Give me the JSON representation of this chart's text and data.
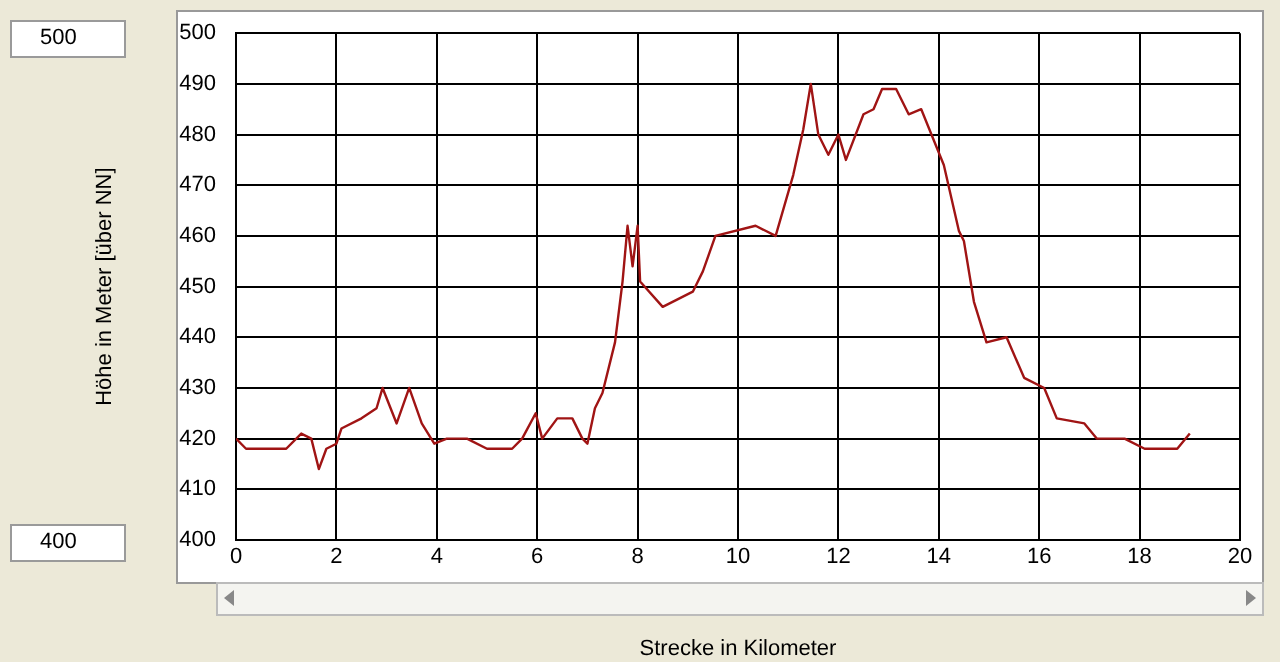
{
  "chart_data": {
    "type": "line",
    "xlabel": "Strecke in Kilometer",
    "ylabel": "Höhe in Meter [über NN]",
    "annotations": [
      "500",
      "400"
    ],
    "x": [
      0,
      0.2,
      0.6,
      1.0,
      1.3,
      1.5,
      1.65,
      1.8,
      2.0,
      2.1,
      2.5,
      2.8,
      2.92,
      3.2,
      3.45,
      3.7,
      3.95,
      4.2,
      4.6,
      5.0,
      5.5,
      5.7,
      5.97,
      6.1,
      6.4,
      6.7,
      6.9,
      7.0,
      7.15,
      7.3,
      7.55,
      7.7,
      7.8,
      7.9,
      8.0,
      8.05,
      8.5,
      9.1,
      9.3,
      9.55,
      10.35,
      10.75,
      11.1,
      11.3,
      11.45,
      11.6,
      11.8,
      12.0,
      12.15,
      12.5,
      12.7,
      12.87,
      13.15,
      13.4,
      13.65,
      14.1,
      14.4,
      14.5,
      14.7,
      14.95,
      15.35,
      15.7,
      16.1,
      16.35,
      16.9,
      17.15,
      17.7,
      18.1,
      18.75,
      19.0
    ],
    "series": [
      {
        "color": "#a01414",
        "values": [
          420,
          418,
          418,
          418,
          421,
          420,
          414,
          418,
          419,
          422,
          424,
          426,
          430,
          423,
          430,
          423,
          419,
          420,
          420,
          418,
          418,
          420,
          425,
          420,
          424,
          424,
          420,
          419,
          426,
          429,
          439,
          451,
          462,
          454,
          462,
          451,
          446,
          449,
          453,
          460,
          462,
          460,
          472,
          481,
          490,
          480,
          476,
          480,
          475,
          484,
          485,
          489,
          489,
          484,
          485,
          474,
          461,
          459,
          447,
          439,
          440,
          432,
          430,
          424,
          423,
          420,
          420,
          418,
          418,
          421
        ]
      }
    ],
    "xlim": [
      0,
      20
    ],
    "xticks": [
      0,
      2,
      4,
      6,
      8,
      10,
      12,
      14,
      16,
      18,
      20
    ],
    "ylim": [
      400,
      500
    ],
    "yticks": [
      400,
      410,
      420,
      430,
      440,
      450,
      460,
      470,
      480,
      490,
      500
    ],
    "grid": true,
    "legend": false,
    "marker": "none",
    "line_style": "solid"
  }
}
